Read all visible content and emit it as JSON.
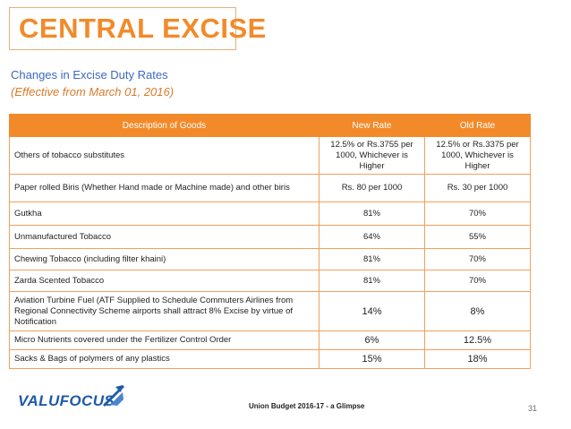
{
  "slide": {
    "title": "CENTRAL EXCISE",
    "subtitle": "Changes in Excise Duty Rates",
    "effective": "(Effective from March 01, 2016)"
  },
  "table": {
    "headers": [
      "Description of Goods",
      "New Rate",
      "Old Rate"
    ],
    "rows": [
      {
        "description": "Others of tobacco substitutes",
        "new_rate": "12.5% or Rs.3755 per 1000, Whichever is Higher",
        "old_rate": "12.5% or Rs.3375 per 1000, Whichever is Higher"
      },
      {
        "description": "Paper rolled Biris (Whether Hand made or Machine made) and other biris",
        "new_rate": "Rs. 80 per 1000",
        "old_rate": "Rs. 30 per 1000"
      },
      {
        "description": "Gutkha",
        "new_rate": "81%",
        "old_rate": "70%"
      },
      {
        "description": "Unmanufactured Tobacco",
        "new_rate": "64%",
        "old_rate": "55%"
      },
      {
        "description": "Chewing Tobacco (including filter khaini)",
        "new_rate": "81%",
        "old_rate": "70%"
      },
      {
        "description": "Zarda Scented Tobacco",
        "new_rate": "81%",
        "old_rate": "70%"
      },
      {
        "description": "Aviation Turbine Fuel (ATF Supplied to Schedule Commuters Airlines from Regional Connectivity Scheme airports shall attract 8% Excise by virtue of Notification",
        "new_rate": "14%",
        "old_rate": "8%"
      },
      {
        "description": "Micro Nutrients covered under the Fertilizer Control Order",
        "new_rate": "6%",
        "old_rate": "12.5%"
      },
      {
        "description": "Sacks & Bags of polymers of any plastics",
        "new_rate": "15%",
        "old_rate": "18%"
      }
    ]
  },
  "footer": {
    "logo_text": "VALUFOCUS",
    "caption": "Union Budget 2016-17  - a Glimpse",
    "page_number": "31"
  },
  "colors": {
    "accent": "#f28a2a",
    "subtitle": "#3c67c0",
    "logo": "#1e5aa8"
  },
  "icons": {
    "logo_mark": "valufocus-logo-icon"
  }
}
